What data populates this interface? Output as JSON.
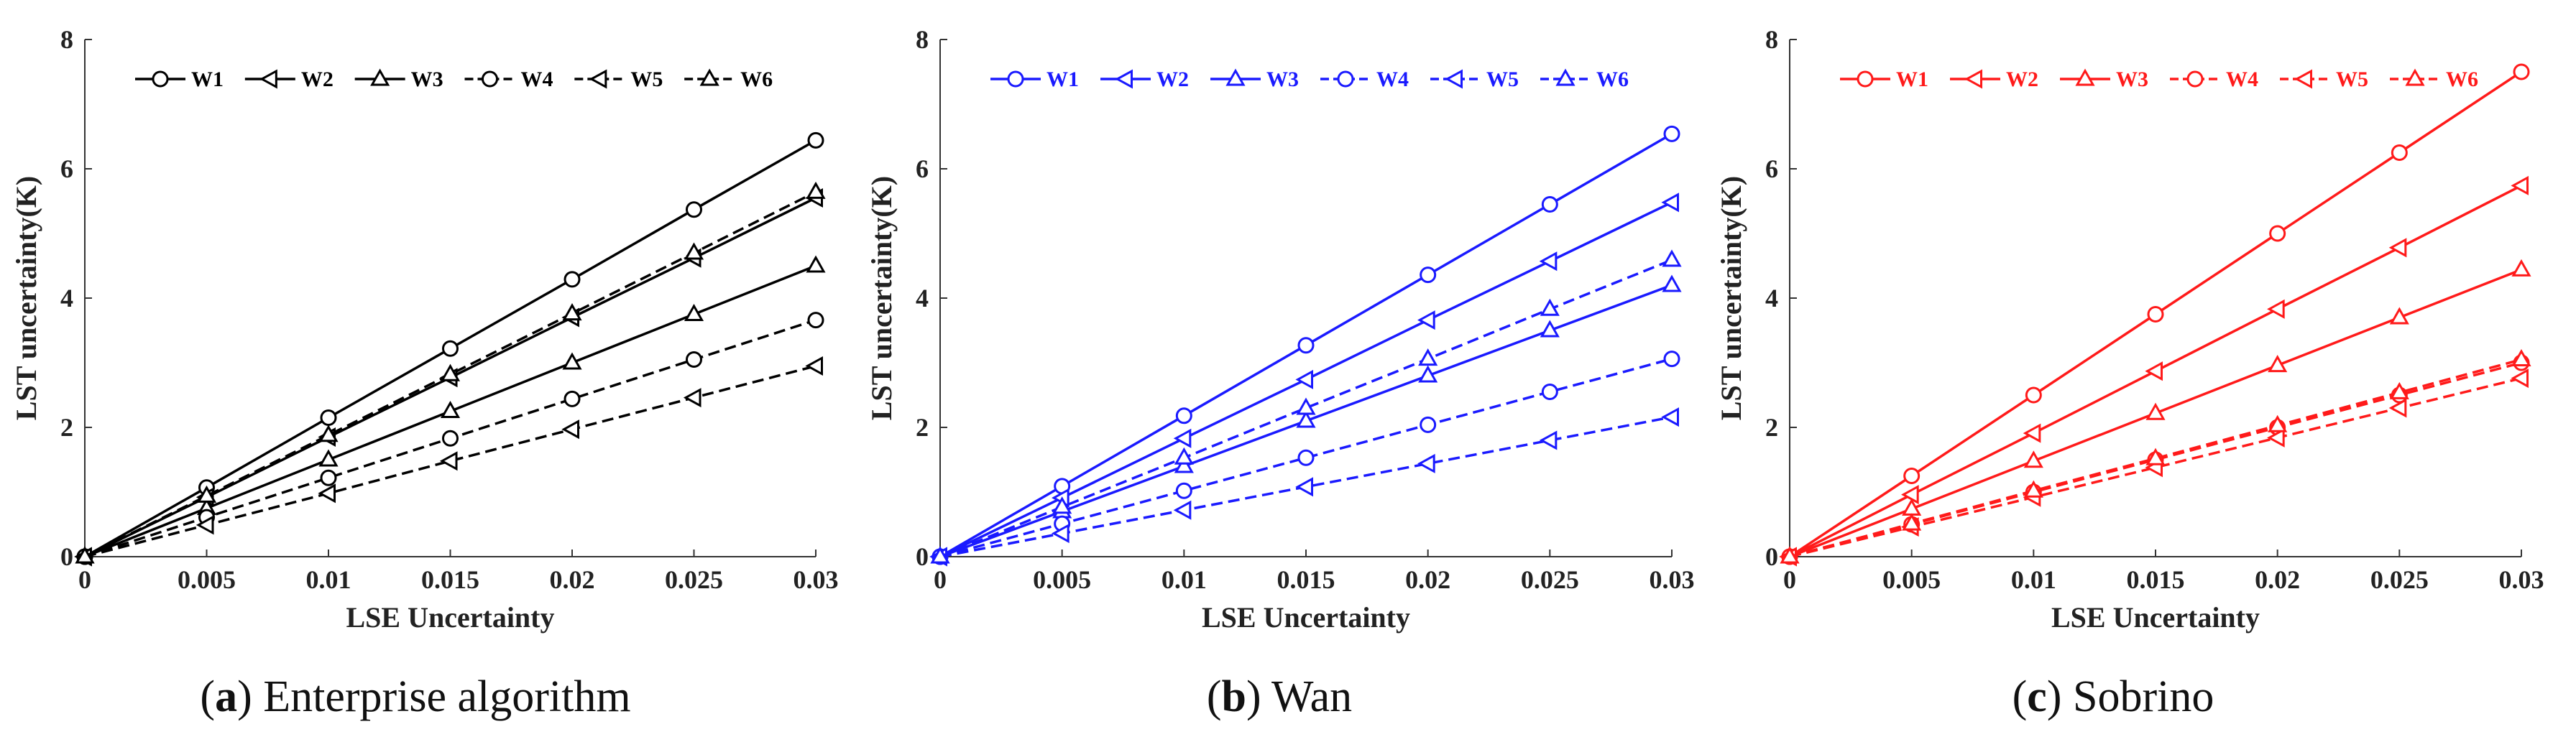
{
  "chart_data": [
    {
      "type": "line",
      "panel": "a",
      "caption_label": "a",
      "caption_text": "Enterprise algorithm",
      "color": "#000000",
      "xlabel": "LSE Uncertainty",
      "ylabel": "LST uncertainty(K)",
      "xlim": [
        0,
        0.03
      ],
      "ylim": [
        0,
        8
      ],
      "xticks": [
        "0",
        "0.005",
        "0.01",
        "0.015",
        "0.02",
        "0.025",
        "0.03"
      ],
      "yticks": [
        "0",
        "2",
        "4",
        "6",
        "8"
      ],
      "legend_position": "top",
      "x": [
        0,
        0.005,
        0.01,
        0.015,
        0.02,
        0.025,
        0.03
      ],
      "series": [
        {
          "name": "W1",
          "style": "solid",
          "marker": "circle",
          "values": [
            0,
            1.07,
            2.15,
            3.22,
            4.29,
            5.37,
            6.44
          ]
        },
        {
          "name": "W2",
          "style": "solid",
          "marker": "triangle-left",
          "values": [
            0,
            0.92,
            1.85,
            2.77,
            3.7,
            4.62,
            5.55
          ]
        },
        {
          "name": "W3",
          "style": "solid",
          "marker": "triangle-up",
          "values": [
            0,
            0.75,
            1.5,
            2.25,
            3.0,
            3.75,
            4.5
          ]
        },
        {
          "name": "W4",
          "style": "dashed",
          "marker": "circle",
          "values": [
            0,
            0.61,
            1.22,
            1.83,
            2.44,
            3.05,
            3.66
          ]
        },
        {
          "name": "W5",
          "style": "dashed",
          "marker": "triangle-left",
          "values": [
            0,
            0.49,
            0.98,
            1.48,
            1.97,
            2.46,
            2.95
          ]
        },
        {
          "name": "W6",
          "style": "dashed",
          "marker": "triangle-up",
          "values": [
            0,
            0.94,
            1.88,
            2.82,
            3.76,
            4.7,
            5.64
          ]
        }
      ]
    },
    {
      "type": "line",
      "panel": "b",
      "caption_label": "b",
      "caption_text": "Wan",
      "color": "#1a1aff",
      "xlabel": "LSE Uncertainty",
      "ylabel": "LST uncertainty(K)",
      "xlim": [
        0,
        0.03
      ],
      "ylim": [
        0,
        8
      ],
      "xticks": [
        "0",
        "0.005",
        "0.01",
        "0.015",
        "0.02",
        "0.025",
        "0.03"
      ],
      "yticks": [
        "0",
        "2",
        "4",
        "6",
        "8"
      ],
      "legend_position": "top",
      "x": [
        0,
        0.005,
        0.01,
        0.015,
        0.02,
        0.025,
        0.03
      ],
      "series": [
        {
          "name": "W1",
          "style": "solid",
          "marker": "circle",
          "values": [
            0,
            1.09,
            2.18,
            3.27,
            4.36,
            5.45,
            6.54
          ]
        },
        {
          "name": "W2",
          "style": "solid",
          "marker": "triangle-left",
          "values": [
            0,
            0.91,
            1.83,
            2.74,
            3.66,
            4.57,
            5.48
          ]
        },
        {
          "name": "W3",
          "style": "solid",
          "marker": "triangle-up",
          "values": [
            0,
            0.7,
            1.4,
            2.1,
            2.8,
            3.5,
            4.2
          ]
        },
        {
          "name": "W4",
          "style": "dashed",
          "marker": "circle",
          "values": [
            0,
            0.51,
            1.02,
            1.53,
            2.04,
            2.55,
            3.06
          ]
        },
        {
          "name": "W5",
          "style": "dashed",
          "marker": "triangle-left",
          "values": [
            0,
            0.36,
            0.72,
            1.08,
            1.44,
            1.8,
            2.16
          ]
        },
        {
          "name": "W6",
          "style": "dashed",
          "marker": "triangle-up",
          "values": [
            0,
            0.77,
            1.53,
            2.3,
            3.06,
            3.83,
            4.59
          ]
        }
      ]
    },
    {
      "type": "line",
      "panel": "c",
      "caption_label": "c",
      "caption_text": "Sobrino",
      "color": "#ff1a1a",
      "xlabel": "LSE Uncertainty",
      "ylabel": "LST uncertainty(K)",
      "xlim": [
        0,
        0.03
      ],
      "ylim": [
        0,
        8
      ],
      "xticks": [
        "0",
        "0.005",
        "0.01",
        "0.015",
        "0.02",
        "0.025",
        "0.03"
      ],
      "yticks": [
        "0",
        "2",
        "4",
        "6",
        "8"
      ],
      "legend_position": "top",
      "x": [
        0,
        0.005,
        0.01,
        0.015,
        0.02,
        0.025,
        0.03
      ],
      "series": [
        {
          "name": "W1",
          "style": "solid",
          "marker": "circle",
          "values": [
            0,
            1.25,
            2.5,
            3.75,
            5.0,
            6.25,
            7.5
          ]
        },
        {
          "name": "W2",
          "style": "solid",
          "marker": "triangle-left",
          "values": [
            0,
            0.96,
            1.91,
            2.87,
            3.83,
            4.78,
            5.74
          ]
        },
        {
          "name": "W3",
          "style": "solid",
          "marker": "triangle-up",
          "values": [
            0,
            0.74,
            1.48,
            2.22,
            2.96,
            3.7,
            4.44
          ]
        },
        {
          "name": "W4",
          "style": "dashed",
          "marker": "circle",
          "values": [
            0,
            0.5,
            1.0,
            1.5,
            2.0,
            2.5,
            3.0
          ]
        },
        {
          "name": "W5",
          "style": "dashed",
          "marker": "triangle-left",
          "values": [
            0,
            0.46,
            0.92,
            1.38,
            1.84,
            2.3,
            2.76
          ]
        },
        {
          "name": "W6",
          "style": "dashed",
          "marker": "triangle-up",
          "values": [
            0,
            0.51,
            1.02,
            1.52,
            2.03,
            2.54,
            3.05
          ]
        }
      ]
    }
  ]
}
